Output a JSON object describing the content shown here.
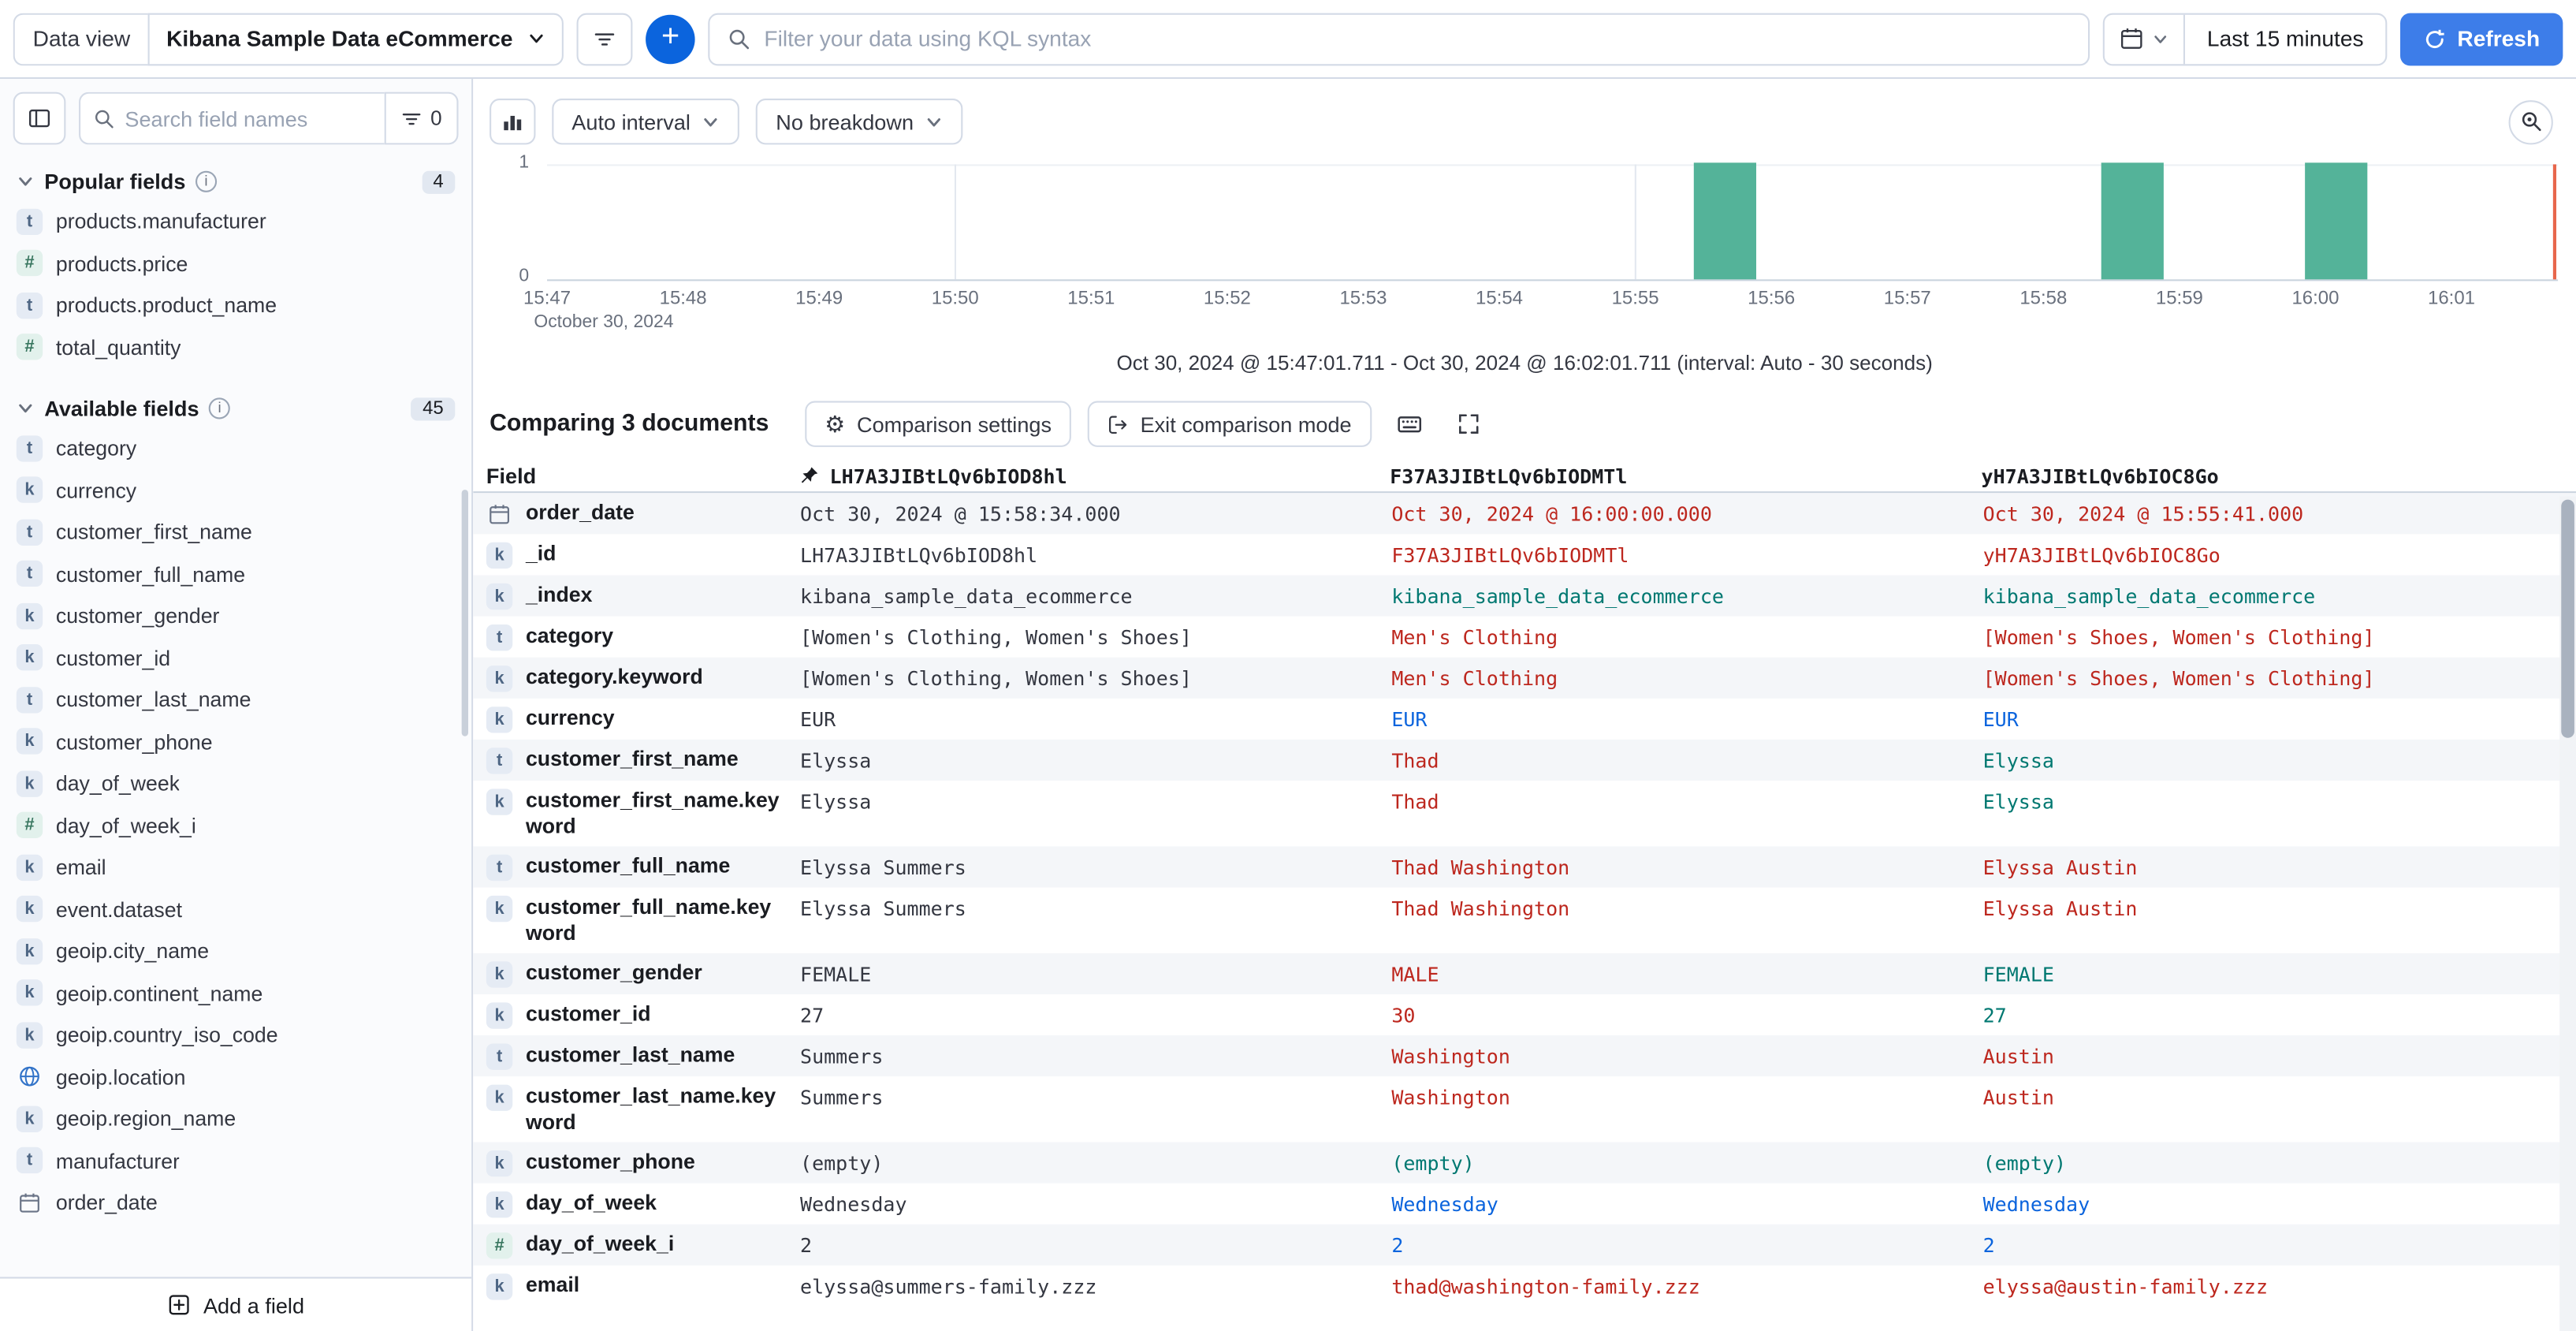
{
  "colors": {
    "accent": "#0B64DD",
    "refresh_button": "#3D7DE9",
    "bar": "#54B399",
    "diff_red": "#BD271E",
    "match_green": "#007871",
    "match_blue": "#0B64DD",
    "time_marker": "#E7664C",
    "border": "#D3DAE6"
  },
  "top_bar": {
    "data_view_label": "Data view",
    "data_view_value": "Kibana Sample Data eCommerce",
    "kql_placeholder": "Filter your data using KQL syntax",
    "time_range": "Last 15 minutes",
    "refresh_label": "Refresh"
  },
  "sidebar": {
    "search_placeholder": "Search field names",
    "filter_count": "0",
    "add_field_label": "Add a field",
    "sections": [
      {
        "label": "Popular fields",
        "count": "4",
        "items": [
          {
            "name": "products.manufacturer",
            "type": "t"
          },
          {
            "name": "products.price",
            "type": "n"
          },
          {
            "name": "products.product_name",
            "type": "t"
          },
          {
            "name": "total_quantity",
            "type": "n"
          }
        ]
      },
      {
        "label": "Available fields",
        "count": "45",
        "items": [
          {
            "name": "category",
            "type": "t"
          },
          {
            "name": "currency",
            "type": "k"
          },
          {
            "name": "customer_first_name",
            "type": "t"
          },
          {
            "name": "customer_full_name",
            "type": "t"
          },
          {
            "name": "customer_gender",
            "type": "k"
          },
          {
            "name": "customer_id",
            "type": "k"
          },
          {
            "name": "customer_last_name",
            "type": "t"
          },
          {
            "name": "customer_phone",
            "type": "k"
          },
          {
            "name": "day_of_week",
            "type": "k"
          },
          {
            "name": "day_of_week_i",
            "type": "n"
          },
          {
            "name": "email",
            "type": "k"
          },
          {
            "name": "event.dataset",
            "type": "k"
          },
          {
            "name": "geoip.city_name",
            "type": "k"
          },
          {
            "name": "geoip.continent_name",
            "type": "k"
          },
          {
            "name": "geoip.country_iso_code",
            "type": "k"
          },
          {
            "name": "geoip.location",
            "type": "geo"
          },
          {
            "name": "geoip.region_name",
            "type": "k"
          },
          {
            "name": "manufacturer",
            "type": "t"
          },
          {
            "name": "order_date",
            "type": "date"
          }
        ]
      }
    ]
  },
  "chart": {
    "interval_label": "Auto interval",
    "breakdown_label": "No breakdown",
    "y_ticks": [
      "1",
      "0"
    ],
    "x_ticks": [
      "15:47",
      "15:48",
      "15:49",
      "15:50",
      "15:51",
      "15:52",
      "15:53",
      "15:54",
      "15:55",
      "15:56",
      "15:57",
      "15:58",
      "15:59",
      "16:00",
      "16:01"
    ],
    "x_date_label": "October 30, 2024",
    "caption": "Oct 30, 2024 @ 15:47:01.711 - Oct 30, 2024 @ 16:02:01.711 (interval: Auto - 30 seconds)",
    "chart_data": {
      "type": "bar",
      "x_start": "15:47",
      "x_end": "16:02",
      "interval": "30 seconds",
      "ylim": [
        0,
        1
      ],
      "buckets": [
        {
          "time": "15:55:30",
          "count": 1
        },
        {
          "time": "15:58:30",
          "count": 1
        },
        {
          "time": "16:00:00",
          "count": 1
        }
      ]
    }
  },
  "comparison": {
    "title": "Comparing 3 documents",
    "settings_label": "Comparison settings",
    "exit_label": "Exit comparison mode",
    "table": {
      "field_header": "Field",
      "doc_ids": [
        "LH7A3JIBtLQv6bIOD8hl",
        "F37A3JIBtLQv6bIODMTl",
        "yH7A3JIBtLQv6bIOC8Go"
      ],
      "rows": [
        {
          "field": "order_date",
          "icon": "date",
          "values": [
            {
              "text": "Oct 30, 2024 @ 15:58:34.000",
              "status": "base"
            },
            {
              "text": "Oct 30, 2024 @ 16:00:00.000",
              "status": "red"
            },
            {
              "text": "Oct 30, 2024 @ 15:55:41.000",
              "status": "red"
            }
          ]
        },
        {
          "field": "_id",
          "icon": "k",
          "values": [
            {
              "text": "LH7A3JIBtLQv6bIOD8hl",
              "status": "base"
            },
            {
              "text": "F37A3JIBtLQv6bIODMTl",
              "status": "red"
            },
            {
              "text": "yH7A3JIBtLQv6bIOC8Go",
              "status": "red"
            }
          ]
        },
        {
          "field": "_index",
          "icon": "k",
          "values": [
            {
              "text": "kibana_sample_data_ecommerce",
              "status": "base"
            },
            {
              "text": "kibana_sample_data_ecommerce",
              "status": "green"
            },
            {
              "text": "kibana_sample_data_ecommerce",
              "status": "green"
            }
          ]
        },
        {
          "field": "category",
          "icon": "t",
          "values": [
            {
              "text": "[Women's Clothing, Women's Shoes]",
              "status": "base"
            },
            {
              "text": "Men's Clothing",
              "status": "red"
            },
            {
              "text": "[Women's Shoes, Women's Clothing]",
              "status": "red"
            }
          ]
        },
        {
          "field": "category.keyword",
          "icon": "k",
          "values": [
            {
              "text": "[Women's Clothing, Women's Shoes]",
              "status": "base"
            },
            {
              "text": "Men's Clothing",
              "status": "red"
            },
            {
              "text": "[Women's Shoes, Women's Clothing]",
              "status": "red"
            }
          ]
        },
        {
          "field": "currency",
          "icon": "k",
          "values": [
            {
              "text": "EUR",
              "status": "base"
            },
            {
              "text": "EUR",
              "status": "blue"
            },
            {
              "text": "EUR",
              "status": "blue"
            }
          ]
        },
        {
          "field": "customer_first_name",
          "icon": "t",
          "values": [
            {
              "text": "Elyssa",
              "status": "base"
            },
            {
              "text": "Thad",
              "status": "red"
            },
            {
              "text": "Elyssa",
              "status": "green"
            }
          ]
        },
        {
          "field": "customer_first_name.keyword",
          "icon": "k",
          "values": [
            {
              "text": "Elyssa",
              "status": "base"
            },
            {
              "text": "Thad",
              "status": "red"
            },
            {
              "text": "Elyssa",
              "status": "green"
            }
          ]
        },
        {
          "field": "customer_full_name",
          "icon": "t",
          "values": [
            {
              "text": "Elyssa Summers",
              "status": "base"
            },
            {
              "text": "Thad Washington",
              "status": "red"
            },
            {
              "text": "Elyssa Austin",
              "status": "red"
            }
          ]
        },
        {
          "field": "customer_full_name.keyword",
          "icon": "k",
          "values": [
            {
              "text": "Elyssa Summers",
              "status": "base"
            },
            {
              "text": "Thad Washington",
              "status": "red"
            },
            {
              "text": "Elyssa Austin",
              "status": "red"
            }
          ]
        },
        {
          "field": "customer_gender",
          "icon": "k",
          "values": [
            {
              "text": "FEMALE",
              "status": "base"
            },
            {
              "text": "MALE",
              "status": "red"
            },
            {
              "text": "FEMALE",
              "status": "green"
            }
          ]
        },
        {
          "field": "customer_id",
          "icon": "k",
          "values": [
            {
              "text": "27",
              "status": "base"
            },
            {
              "text": "30",
              "status": "red"
            },
            {
              "text": "27",
              "status": "green"
            }
          ]
        },
        {
          "field": "customer_last_name",
          "icon": "t",
          "values": [
            {
              "text": "Summers",
              "status": "base"
            },
            {
              "text": "Washington",
              "status": "red"
            },
            {
              "text": "Austin",
              "status": "red"
            }
          ]
        },
        {
          "field": "customer_last_name.keyword",
          "icon": "k",
          "values": [
            {
              "text": "Summers",
              "status": "base"
            },
            {
              "text": "Washington",
              "status": "red"
            },
            {
              "text": "Austin",
              "status": "red"
            }
          ]
        },
        {
          "field": "customer_phone",
          "icon": "k",
          "values": [
            {
              "text": "(empty)",
              "status": "base"
            },
            {
              "text": "(empty)",
              "status": "green"
            },
            {
              "text": "(empty)",
              "status": "green"
            }
          ]
        },
        {
          "field": "day_of_week",
          "icon": "k",
          "values": [
            {
              "text": "Wednesday",
              "status": "base"
            },
            {
              "text": "Wednesday",
              "status": "blue"
            },
            {
              "text": "Wednesday",
              "status": "blue"
            }
          ]
        },
        {
          "field": "day_of_week_i",
          "icon": "n",
          "values": [
            {
              "text": "2",
              "status": "base"
            },
            {
              "text": "2",
              "status": "blue"
            },
            {
              "text": "2",
              "status": "blue"
            }
          ]
        },
        {
          "field": "email",
          "icon": "k",
          "values": [
            {
              "text": "elyssa@summers-family.zzz",
              "status": "base"
            },
            {
              "text": "thad@washington-family.zzz",
              "status": "red"
            },
            {
              "text": "elyssa@austin-family.zzz",
              "status": "red"
            }
          ]
        }
      ]
    }
  }
}
